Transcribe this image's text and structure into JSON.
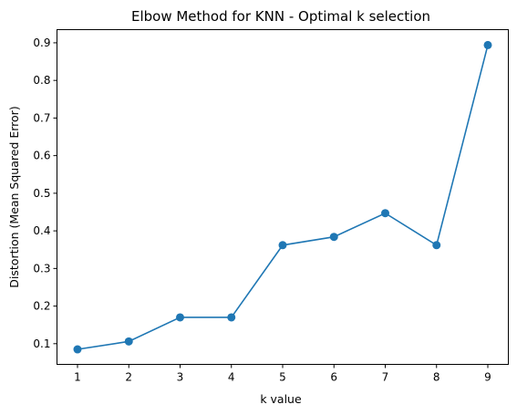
{
  "chart_data": {
    "type": "line",
    "title": "Elbow Method for KNN - Optimal k selection",
    "xlabel": "k value",
    "ylabel": "Distortion (Mean Squared Error)",
    "x": [
      1,
      2,
      3,
      4,
      5,
      6,
      7,
      8,
      9
    ],
    "series": [
      {
        "values": [
          0.085,
          0.106,
          0.17,
          0.17,
          0.362,
          0.384,
          0.447,
          0.362,
          0.894
        ],
        "color": "#1f77b4",
        "marker": "circle"
      }
    ],
    "xticks": [
      "1",
      "2",
      "3",
      "4",
      "5",
      "6",
      "7",
      "8",
      "9"
    ],
    "yticks": [
      "0.1",
      "0.2",
      "0.3",
      "0.4",
      "0.5",
      "0.6",
      "0.7",
      "0.8",
      "0.9"
    ],
    "xlim": [
      0.6,
      9.4
    ],
    "ylim": [
      0.045,
      0.935
    ],
    "grid": false
  }
}
